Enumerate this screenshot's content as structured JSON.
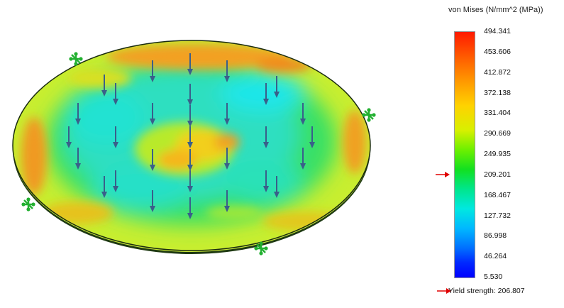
{
  "legend": {
    "title": "von Mises (N/mm^2 (MPa))",
    "ticks": [
      "494.341",
      "453.606",
      "412.872",
      "372.138",
      "331.404",
      "290.669",
      "249.935",
      "209.201",
      "168.467",
      "127.732",
      "86.998",
      "46.264",
      "5.530"
    ],
    "marker_value": 209.201,
    "yield_label": "Yield strength: 206.807"
  },
  "colors": {
    "max": "#ff1a00",
    "mid": "#12e020",
    "min": "#0000ff",
    "marker": "#e00000",
    "load_arrow": "#3a5f8a",
    "fixture": "#22b030"
  },
  "icons": [
    "load-arrow-icon",
    "fixture-icon",
    "yield-marker-icon"
  ]
}
